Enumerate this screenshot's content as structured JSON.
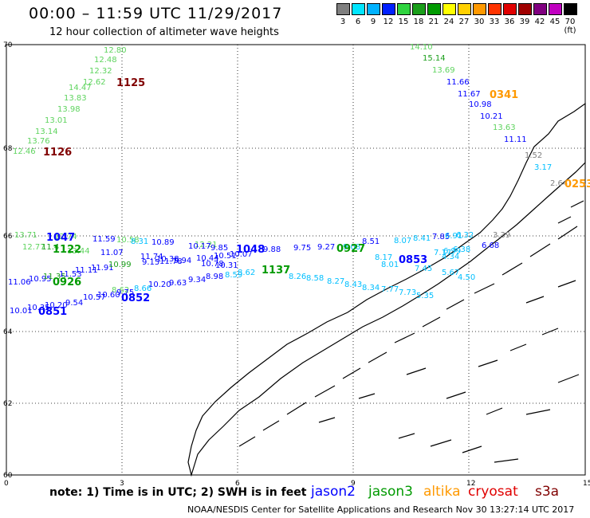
{
  "header": {
    "title": "00:00 – 11:59 UTC 11/29/2017",
    "subtitle": "12 hour collection of altimeter wave heights"
  },
  "legend": {
    "unit": "(ft)",
    "labels": [
      "3",
      "6",
      "9",
      "12",
      "15",
      "18",
      "21",
      "24",
      "27",
      "30",
      "33",
      "36",
      "39",
      "42",
      "45",
      "70"
    ],
    "colors": [
      "#7f7f7f",
      "#00e5ff",
      "#00b2ff",
      "#0020ff",
      "#2fd43f",
      "#1a9e1a",
      "#009b00",
      "#ffff00",
      "#ffd000",
      "#ff9900",
      "#ff3300",
      "#e00000",
      "#a00000",
      "#800080",
      "#c000c0",
      "#000000"
    ]
  },
  "axes": {
    "x_ticks": [
      "0",
      "3",
      "6",
      "9",
      "12",
      "15"
    ],
    "y_ticks": [
      "60",
      "62",
      "64",
      "66",
      "68",
      "70"
    ]
  },
  "passes": [
    {
      "time": "1125",
      "sat": "cryosat"
    },
    {
      "time": "1126",
      "sat": "cryosat"
    },
    {
      "time": "0341",
      "sat": "altika"
    },
    {
      "time": "0253",
      "sat": "altika"
    },
    {
      "time": "1047",
      "sat": "jason2"
    },
    {
      "time": "1122",
      "sat": "jason3"
    },
    {
      "time": "1048",
      "sat": "jason2"
    },
    {
      "time": "1137",
      "sat": "jason3"
    },
    {
      "time": "0927",
      "sat": "jason3"
    },
    {
      "time": "0853",
      "sat": "jason2"
    },
    {
      "time": "0926",
      "sat": "jason3"
    },
    {
      "time": "0852",
      "sat": "jason2"
    },
    {
      "time": "0851",
      "sat": "jason2"
    }
  ],
  "wave_labels": {
    "track_a": [
      "12.80",
      "12.48",
      "12.32",
      "12.62",
      "14.47",
      "13.83",
      "13.98",
      "13.01",
      "13.14",
      "13.76",
      "12.46"
    ],
    "track_b": [
      "14.10",
      "15.14",
      "13.69",
      "11.66",
      "11.67",
      "10.98",
      "10.21",
      "13.63",
      "11.11",
      "1.52",
      "3.17",
      "2.64"
    ],
    "track_c": [
      "13.71",
      "12.77",
      "11.4",
      "12.74",
      "13.44",
      "11.59",
      "11.07",
      "10.58",
      "8.31",
      "10.89",
      "11.74",
      "10.38",
      "11.78",
      "9.94",
      "12.21",
      "10.17",
      "10.44",
      "10.78",
      "9.85",
      "10.51",
      "10.31",
      "10.07",
      "9.88",
      "9.75",
      "9.27",
      "9.08",
      "8.51",
      "8.07",
      "8.41",
      "7.85",
      "6.91",
      "6.32",
      "7.17",
      "6.99",
      "6.38",
      "6.68",
      "5.67",
      "4.50",
      "4.34",
      "3.39"
    ],
    "track_d": [
      "11.06",
      "10.95",
      "11.35",
      "11.53",
      "11.11",
      "11.91",
      "10.99",
      "9.15",
      "8.62",
      "10.20",
      "9.63",
      "9.34",
      "8.98",
      "8.59",
      "8.62",
      "8.26",
      "8.58",
      "8.27",
      "8.43",
      "8.34",
      "7.77",
      "7.73",
      "5.35",
      "8.17",
      "8.01",
      "7.45"
    ],
    "track_e": [
      "10.01",
      "10.35",
      "10.20",
      "9.54",
      "10.57",
      "10.60",
      "9.75",
      "8.66"
    ]
  },
  "satellites": [
    {
      "name": "jason2",
      "color": "#0000ff"
    },
    {
      "name": "jason3",
      "color": "#009a00"
    },
    {
      "name": "altika",
      "color": "#ff9900"
    },
    {
      "name": "cryosat",
      "color": "#e00000"
    },
    {
      "name": "s3a",
      "color": "#800000"
    }
  ],
  "note": "note: 1) Time is in UTC; 2) SWH is in feet",
  "credit": "NOAA/NESDIS Center for Satellite Applications and Research   Nov 30 13:27:14 UTC 2017"
}
